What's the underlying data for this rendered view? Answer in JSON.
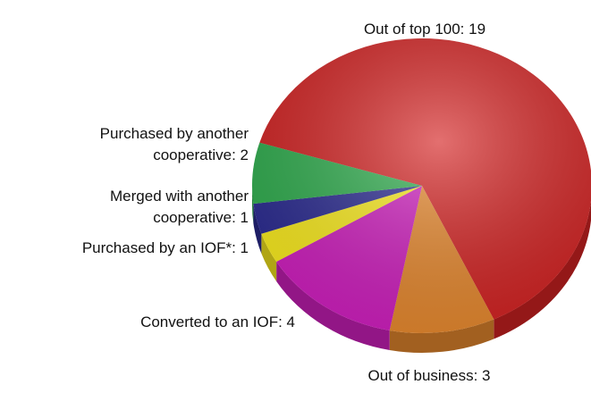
{
  "chart_data": {
    "type": "pie",
    "labels": [
      [
        "Out of top 100: 19"
      ],
      [
        "Out of business: 3"
      ],
      [
        "Converted to an IOF: 4"
      ],
      [
        "Purchased by an IOF*: 1"
      ],
      [
        "Merged with another",
        "cooperative: 1"
      ],
      [
        "Purchased by another",
        "cooperative: 2"
      ]
    ],
    "values": [
      19,
      3,
      4,
      1,
      1,
      2
    ],
    "colors": [
      "#d42222",
      "#e8892e",
      "#d01fbf",
      "#fbec1e",
      "#2b2b92",
      "#2fae4e"
    ]
  }
}
